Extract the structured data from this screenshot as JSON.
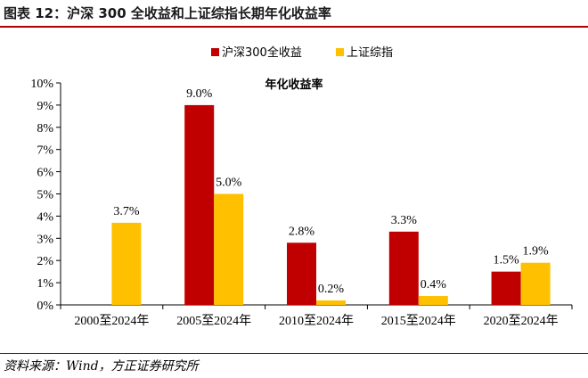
{
  "figure": {
    "title": "图表 12：沪深 300 全收益和上证综指长期年化收益率",
    "source": "资料来源：Wind，方正证券研究所"
  },
  "chart_data": {
    "type": "bar",
    "title": "年化收益率",
    "categories": [
      "2000至2024年",
      "2005至2024年",
      "2010至2024年",
      "2015至2024年",
      "2020至2024年"
    ],
    "series": [
      {
        "name": "沪深300全收益",
        "color": "#c00000",
        "values": [
          null,
          9.0,
          2.8,
          3.3,
          1.5
        ]
      },
      {
        "name": "上证综指",
        "color": "#ffc000",
        "values": [
          3.7,
          5.0,
          0.2,
          0.4,
          1.9
        ]
      }
    ],
    "data_labels": [
      [
        null,
        "9.0%",
        "2.8%",
        "3.3%",
        "1.5%"
      ],
      [
        "3.7%",
        "5.0%",
        "0.2%",
        "0.4%",
        "1.9%"
      ]
    ],
    "y_ticks": [
      "0%",
      "1%",
      "2%",
      "3%",
      "4%",
      "5%",
      "6%",
      "7%",
      "8%",
      "9%",
      "10%"
    ],
    "ylim": [
      0,
      10
    ],
    "legend_position": "top-right",
    "grid": false
  }
}
